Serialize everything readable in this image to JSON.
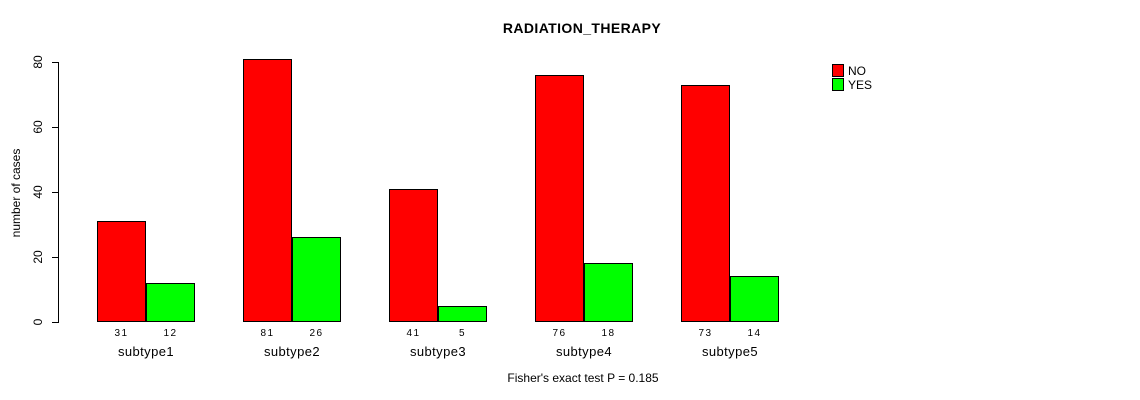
{
  "title": "RADIATION_THERAPY",
  "ylabel": "number of cases",
  "footer": "Fisher's exact test P = 0.185",
  "colors": {
    "no": "#FF0000",
    "yes": "#00FF00",
    "bar_border": "#000000",
    "background": "#FFFFFF",
    "text": "#000000"
  },
  "legend": {
    "position": "top-right",
    "boxed": false,
    "items": [
      {
        "label": "NO",
        "color": "#FF0000"
      },
      {
        "label": "YES",
        "color": "#00FF00"
      }
    ]
  },
  "chart_data": {
    "type": "bar",
    "mode": "grouped",
    "title": "RADIATION_THERAPY",
    "xlabel": "",
    "ylabel": "number of cases",
    "categories": [
      "subtype1",
      "subtype2",
      "subtype3",
      "subtype4",
      "subtype5"
    ],
    "series": [
      {
        "name": "NO",
        "color": "#FF0000",
        "values": [
          31,
          81,
          41,
          76,
          73
        ]
      },
      {
        "name": "YES",
        "color": "#00FF00",
        "values": [
          12,
          26,
          5,
          18,
          14
        ]
      }
    ],
    "bar_value_labels": [
      [
        31,
        12
      ],
      [
        81,
        26
      ],
      [
        41,
        5
      ],
      [
        76,
        18
      ],
      [
        73,
        14
      ]
    ],
    "yticks": [
      0,
      20,
      40,
      60,
      80
    ],
    "ylim": [
      0,
      80
    ],
    "grid": false,
    "legend_position": "top-right",
    "annotation": "Fisher's exact test P = 0.185"
  }
}
